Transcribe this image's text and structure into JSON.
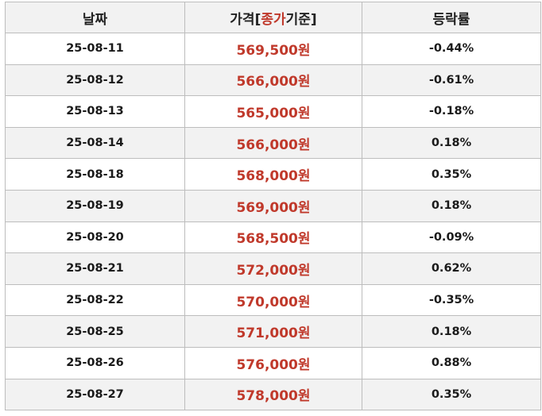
{
  "headers": {
    "date": "날짜",
    "price_prefix": "가격[",
    "price_accent": "종가",
    "price_suffix": "기준]",
    "change": "등락률"
  },
  "rows": [
    {
      "date": "25-08-11",
      "price": "569,500원",
      "change": "-0.44%"
    },
    {
      "date": "25-08-12",
      "price": "566,000원",
      "change": "-0.61%"
    },
    {
      "date": "25-08-13",
      "price": "565,000원",
      "change": "-0.18%"
    },
    {
      "date": "25-08-14",
      "price": "566,000원",
      "change": "0.18%"
    },
    {
      "date": "25-08-18",
      "price": "568,000원",
      "change": "0.35%"
    },
    {
      "date": "25-08-19",
      "price": "569,000원",
      "change": "0.18%"
    },
    {
      "date": "25-08-20",
      "price": "568,500원",
      "change": "-0.09%"
    },
    {
      "date": "25-08-21",
      "price": "572,000원",
      "change": "0.62%"
    },
    {
      "date": "25-08-22",
      "price": "570,000원",
      "change": "-0.35%"
    },
    {
      "date": "25-08-25",
      "price": "571,000원",
      "change": "0.18%"
    },
    {
      "date": "25-08-26",
      "price": "576,000원",
      "change": "0.88%"
    },
    {
      "date": "25-08-27",
      "price": "578,000원",
      "change": "0.35%"
    }
  ],
  "colors": {
    "price_text": "#c0392b",
    "header_bg": "#f2f2f2",
    "stripe_bg": "#f2f2f2",
    "border": "#bdbdbd"
  }
}
